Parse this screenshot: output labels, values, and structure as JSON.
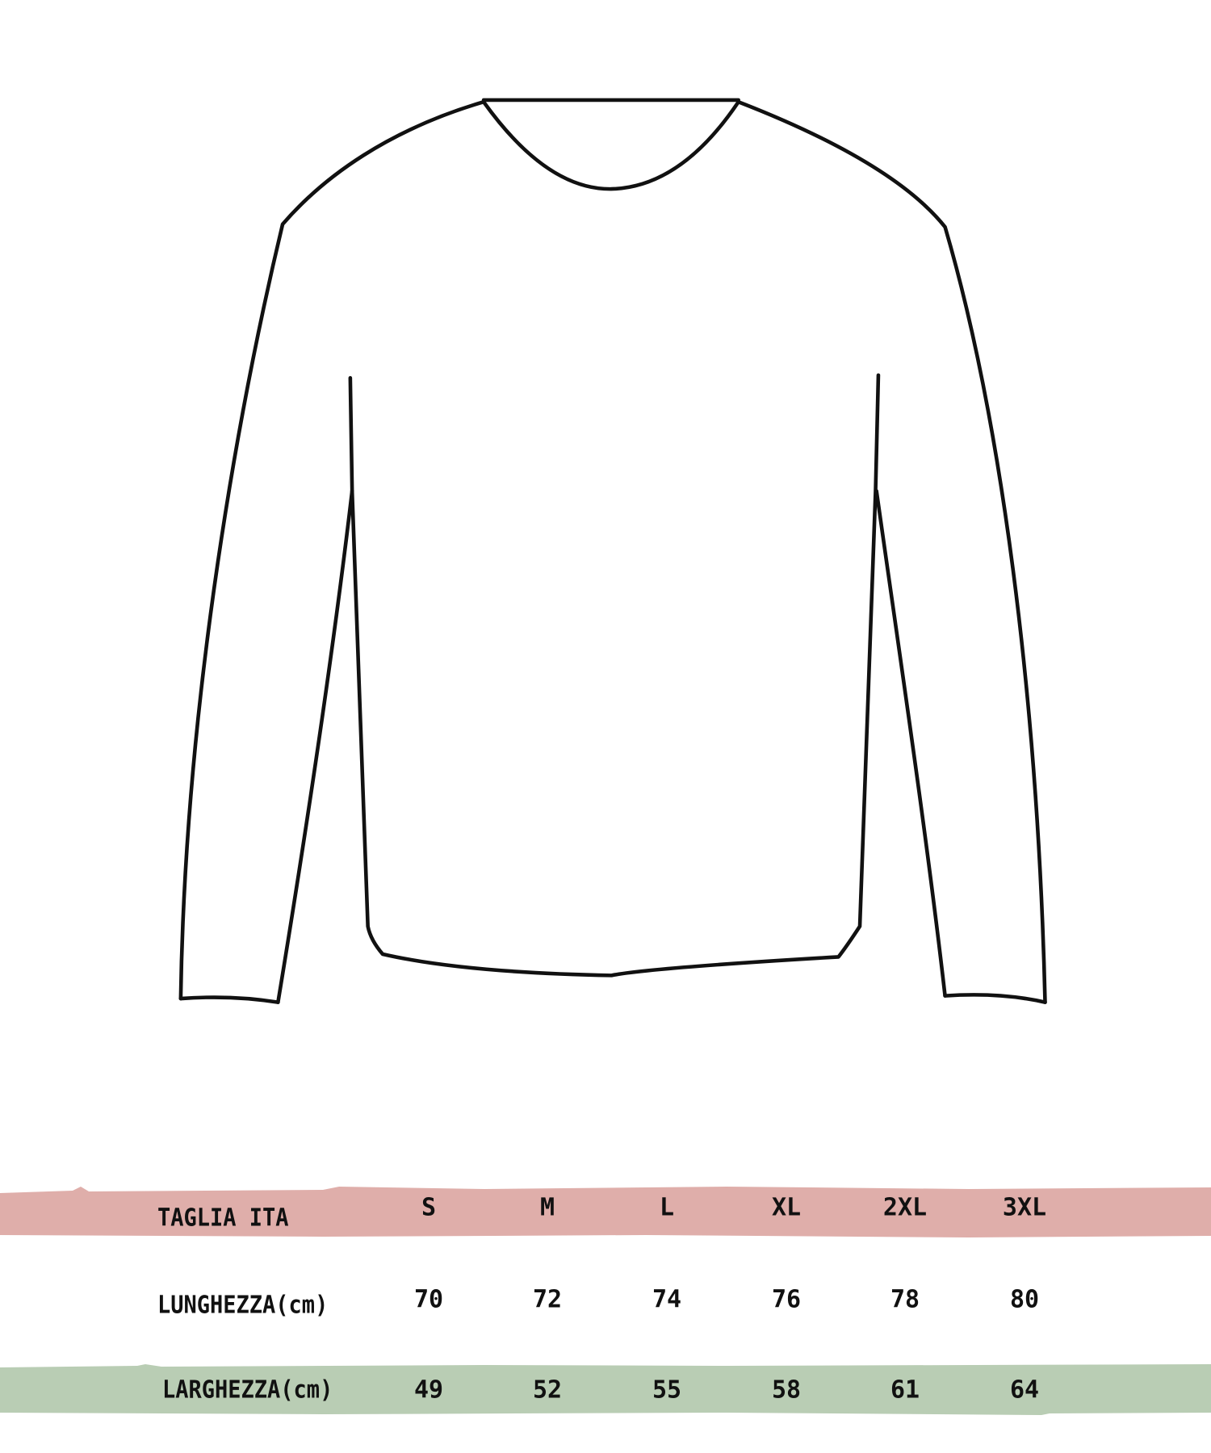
{
  "colors": {
    "header_band": "#dfaeaa",
    "width_band": "#b9cdb4",
    "outline": "#111111"
  },
  "illustration": "sweater-outline",
  "size_table": {
    "header": {
      "label": "TAGLIA ITA",
      "sizes": [
        "S",
        "M",
        "L",
        "XL",
        "2XL",
        "3XL"
      ]
    },
    "rows": [
      {
        "label": "LUNGHEZZA(cm)",
        "values": [
          "70",
          "72",
          "74",
          "76",
          "78",
          "80"
        ]
      },
      {
        "label": "LARGHEZZA(cm)",
        "values": [
          "49",
          "52",
          "55",
          "58",
          "61",
          "64"
        ]
      }
    ]
  }
}
